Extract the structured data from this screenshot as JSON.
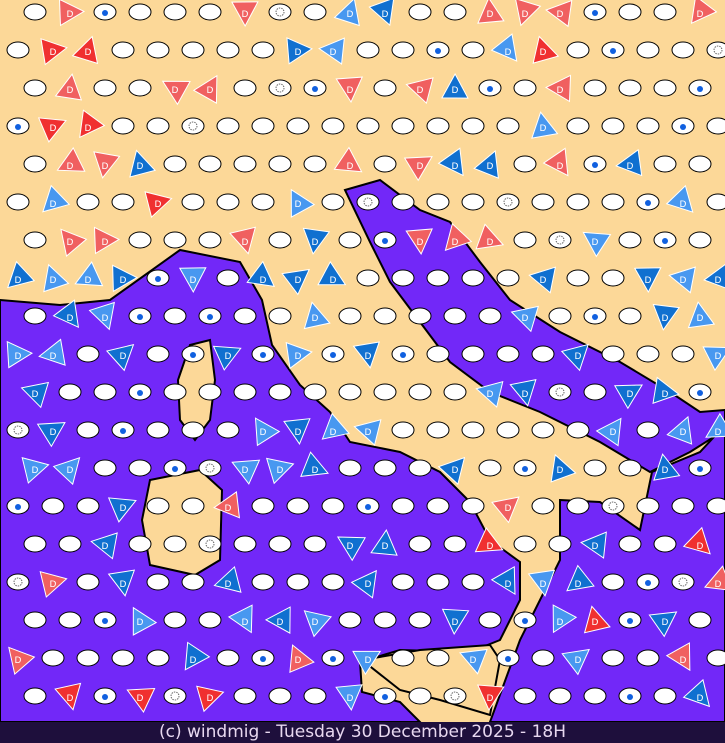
{
  "caption": "(c) windmig - Tuesday 30 December 2025 - 18H",
  "marker_letter": "D",
  "colors": {
    "land": "#fcd898",
    "sea": "#7228f8",
    "border": "#000000",
    "marker_fill": "#ffffff",
    "triangle_red": "#f03030",
    "triangle_light_red": "#f06060",
    "triangle_blue": "#1070d0",
    "triangle_light_blue": "#4898f0",
    "rain_drop": "#1060e0",
    "caption_bg": "#1e0f3c",
    "caption_text": "#e8d8f0"
  },
  "symbols": [
    "clear-oval",
    "rain-drop-oval",
    "fog-oval",
    "wind-triangle"
  ]
}
